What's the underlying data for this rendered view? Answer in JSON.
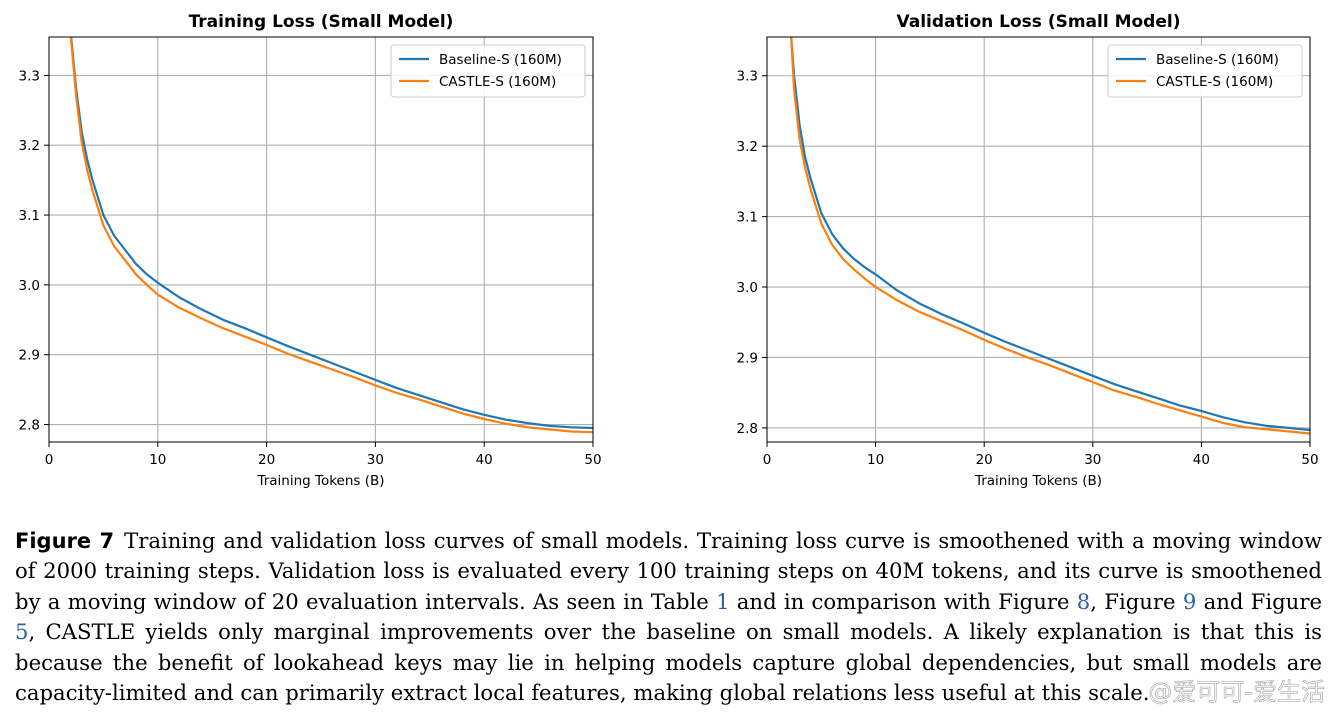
{
  "chart_data": [
    {
      "type": "line",
      "title": "Training Loss (Small Model)",
      "xlabel": "Training Tokens (B)",
      "ylabel": "",
      "xlim": [
        0,
        50
      ],
      "ylim": [
        2.775,
        3.355
      ],
      "xticks": [
        "0",
        "10",
        "20",
        "30",
        "40",
        "50"
      ],
      "yticks": [
        "2.8",
        "2.9",
        "3.0",
        "3.1",
        "3.2",
        "3.3"
      ],
      "grid": true,
      "legend": "top-right",
      "x": [
        2.0,
        2.5,
        3.0,
        3.5,
        4.0,
        5.0,
        6.0,
        7.0,
        8.0,
        9.0,
        10,
        12,
        14,
        16,
        18,
        20,
        22,
        24,
        26,
        28,
        30,
        32,
        34,
        36,
        38,
        40,
        42,
        44,
        46,
        48,
        50
      ],
      "series": [
        {
          "name": "Baseline-S (160M)",
          "color": "#1f77b4",
          "values": [
            3.36,
            3.28,
            3.22,
            3.18,
            3.15,
            3.1,
            3.07,
            3.05,
            3.03,
            3.015,
            3.003,
            2.982,
            2.965,
            2.95,
            2.938,
            2.925,
            2.912,
            2.9,
            2.888,
            2.876,
            2.864,
            2.852,
            2.842,
            2.832,
            2.822,
            2.814,
            2.807,
            2.802,
            2.798,
            2.796,
            2.795
          ]
        },
        {
          "name": "CASTLE-S (160M)",
          "color": "#ff7f0e",
          "values": [
            3.355,
            3.27,
            3.205,
            3.165,
            3.135,
            3.085,
            3.055,
            3.035,
            3.015,
            3.0,
            2.986,
            2.967,
            2.952,
            2.938,
            2.926,
            2.914,
            2.901,
            2.89,
            2.879,
            2.868,
            2.856,
            2.845,
            2.836,
            2.826,
            2.816,
            2.808,
            2.801,
            2.796,
            2.793,
            2.79,
            2.789
          ]
        }
      ]
    },
    {
      "type": "line",
      "title": "Validation Loss (Small Model)",
      "xlabel": "Training Tokens (B)",
      "ylabel": "",
      "xlim": [
        0,
        50
      ],
      "ylim": [
        2.78,
        3.355
      ],
      "xticks": [
        "0",
        "10",
        "20",
        "30",
        "40",
        "50"
      ],
      "yticks": [
        "2.8",
        "2.9",
        "3.0",
        "3.1",
        "3.2",
        "3.3"
      ],
      "grid": true,
      "legend": "top-right",
      "x": [
        2.2,
        2.5,
        3.0,
        3.5,
        4.0,
        5.0,
        6.0,
        7.0,
        8.0,
        9.0,
        10,
        12,
        14,
        16,
        18,
        20,
        22,
        24,
        26,
        28,
        30,
        32,
        34,
        36,
        38,
        40,
        42,
        44,
        46,
        48,
        50
      ],
      "series": [
        {
          "name": "Baseline-S (160M)",
          "color": "#1f77b4",
          "values": [
            3.36,
            3.3,
            3.23,
            3.185,
            3.155,
            3.105,
            3.075,
            3.055,
            3.04,
            3.028,
            3.018,
            2.995,
            2.977,
            2.962,
            2.949,
            2.935,
            2.922,
            2.91,
            2.898,
            2.886,
            2.874,
            2.862,
            2.852,
            2.842,
            2.832,
            2.824,
            2.815,
            2.808,
            2.803,
            2.8,
            2.797
          ]
        },
        {
          "name": "CASTLE-S (160M)",
          "color": "#ff7f0e",
          "values": [
            3.36,
            3.28,
            3.21,
            3.17,
            3.14,
            3.09,
            3.06,
            3.04,
            3.025,
            3.012,
            3.0,
            2.981,
            2.965,
            2.952,
            2.939,
            2.925,
            2.912,
            2.9,
            2.889,
            2.877,
            2.865,
            2.853,
            2.844,
            2.834,
            2.825,
            2.816,
            2.807,
            2.801,
            2.798,
            2.795,
            2.792
          ]
        }
      ]
    }
  ],
  "caption": {
    "label": "Figure 7",
    "text_1": "Training and validation loss curves of small models. Training loss curve is smoothened with a moving window of 2000 training steps. Validation loss is evaluated every 100 training steps on 40M tokens, and its curve is smoothened by a moving window of 20 evaluation intervals. As seen in Table ",
    "ref_table": "1",
    "text_2": " and in comparison with Figure ",
    "ref_fig_a": "8",
    "text_3": ", Figure ",
    "ref_fig_b": "9",
    "text_4": " and Figure ",
    "ref_fig_c": "5",
    "text_5": ", CASTLE yields only marginal improvements over the baseline on small models. A likely explanation is that this is because the benefit of lookahead keys may lie in helping models capture global dependencies, but small models are capacity-limited and can primarily extract local features, making global relations less useful at this scale."
  },
  "watermark": "@爱可可-爱生活"
}
